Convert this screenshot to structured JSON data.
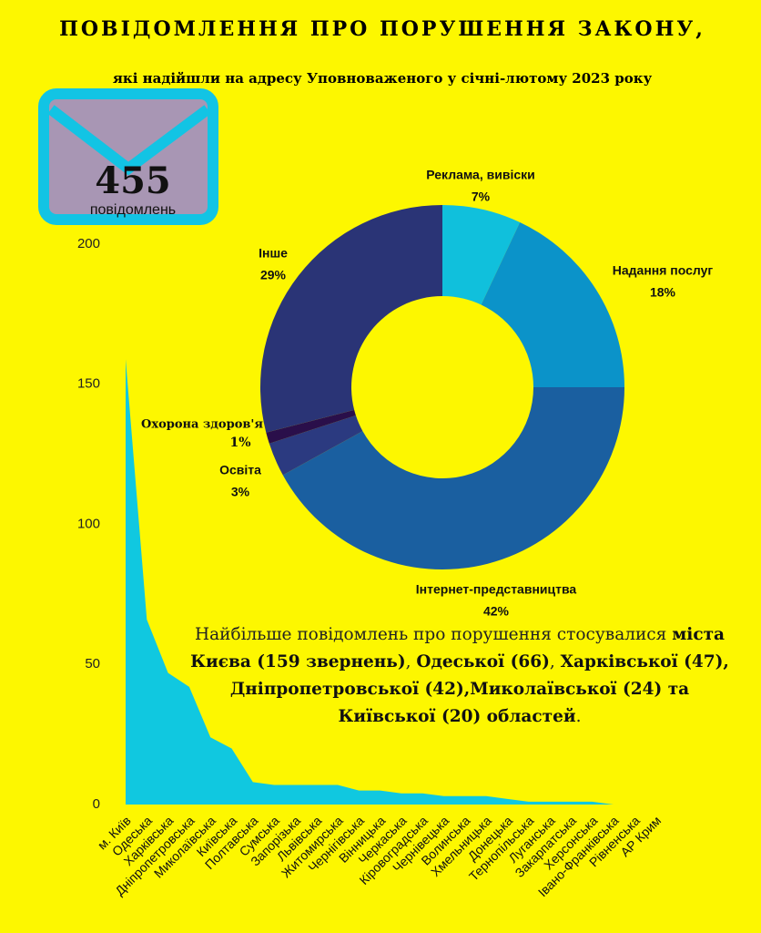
{
  "header": {
    "title": "ПОВІДОМЛЕННЯ ПРО ПОРУШЕННЯ ЗАКОНУ,",
    "subtitle": "які надійшли на адресу Уповноваженого у січні-лютому 2023 року"
  },
  "badge": {
    "value": 455,
    "label": "повідомлень"
  },
  "chart_data": [
    {
      "type": "pie",
      "donut": true,
      "categories": [
        "Реклама, вивіски",
        "Надання послуг",
        "Інтернет-представництва",
        "Освіта",
        "Охорона здоров'я",
        "Інше"
      ],
      "values": [
        7,
        18,
        42,
        3,
        1,
        29
      ],
      "value_labels": [
        "7%",
        "18%",
        "42%",
        "3%",
        "1%",
        "29%"
      ],
      "colors": [
        "#10c0dc",
        "#0b93c9",
        "#1a5fa0",
        "#2b3a80",
        "#2a0f4a",
        "#2a3476"
      ]
    },
    {
      "type": "area",
      "color": "#10c8e0",
      "categories": [
        "м. Київ",
        "Одеська",
        "Харківська",
        "Дніпропетровська",
        "Миколаївська",
        "Київська",
        "Полтавська",
        "Сумська",
        "Запорізька",
        "Львівська",
        "Житомирська",
        "Чернігівська",
        "Вінницька",
        "Черкаська",
        "Кіровоградська",
        "Чернівецька",
        "Волинська",
        "Хмельницька",
        "Донецька",
        "Тернопільська",
        "Луганська",
        "Закарпатська",
        "Херсонська",
        "Івано-Франківська",
        "Рівненська",
        "АР Крим"
      ],
      "values": [
        159,
        66,
        47,
        42,
        24,
        20,
        8,
        7,
        7,
        7,
        7,
        5,
        5,
        4,
        4,
        3,
        3,
        3,
        2,
        1,
        1,
        1,
        1,
        0,
        0,
        0
      ],
      "ylim": [
        0,
        200
      ],
      "yticks": [
        0,
        50,
        100,
        150,
        200
      ]
    }
  ],
  "summary": [
    {
      "text": "Найбільше повідомлень про порушення стосувалися ",
      "bold": false
    },
    {
      "text": "міста Києва (159 звернень)",
      "bold": true
    },
    {
      "text": ", ",
      "bold": false
    },
    {
      "text": "Одеської (66)",
      "bold": true
    },
    {
      "text": ", ",
      "bold": false
    },
    {
      "text": "Харківської (47), Дніпропетровської (42),Миколаївської (24) та Київської (20) областей",
      "bold": true
    },
    {
      "text": ".",
      "bold": false
    }
  ]
}
